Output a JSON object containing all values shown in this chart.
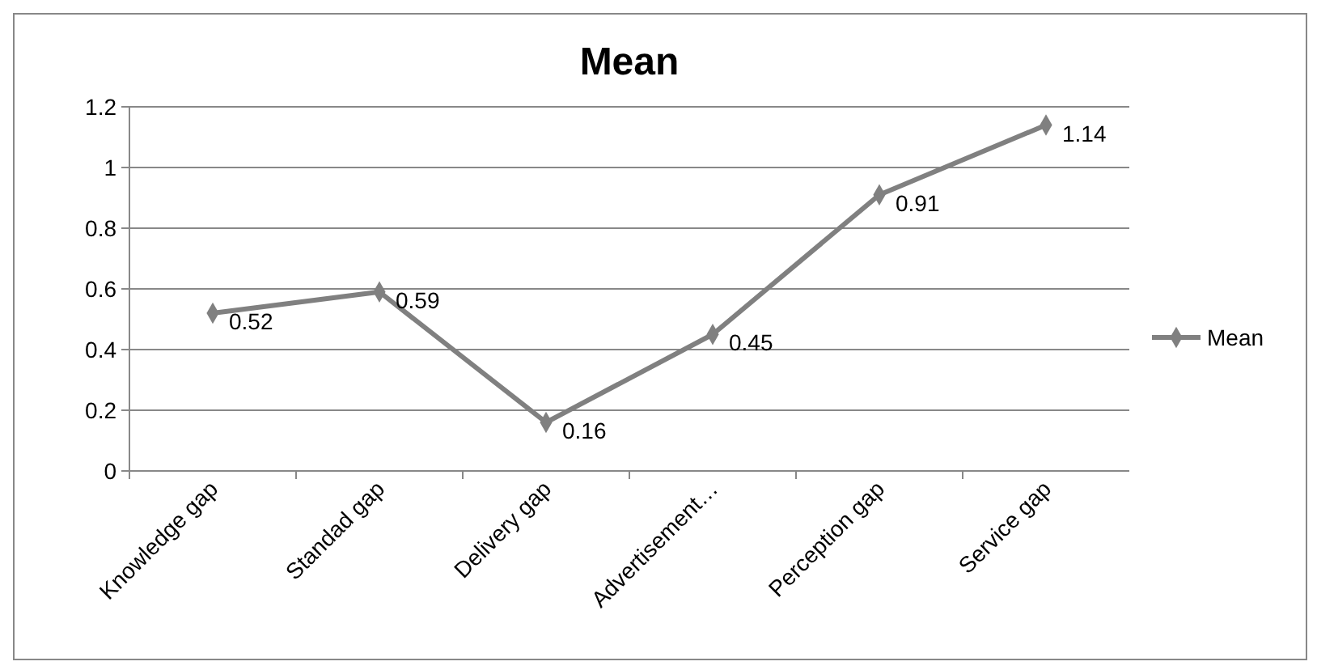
{
  "chart_data": {
    "type": "line",
    "title": "Mean",
    "categories": [
      "Knowledge gap",
      "Standad gap",
      "Delivery gap",
      "Advertisement…",
      "Perception gap",
      "Service gap"
    ],
    "series": [
      {
        "name": "Mean",
        "color": "#808080",
        "values": [
          0.52,
          0.59,
          0.16,
          0.45,
          0.91,
          1.14
        ]
      }
    ],
    "ylim": [
      0,
      1.2
    ],
    "yticks": [
      0,
      0.2,
      0.4,
      0.6,
      0.8,
      1,
      1.2
    ],
    "grid": "y",
    "legend": "right",
    "marker": "diamond",
    "line_style": "solid",
    "data_labels": true
  }
}
